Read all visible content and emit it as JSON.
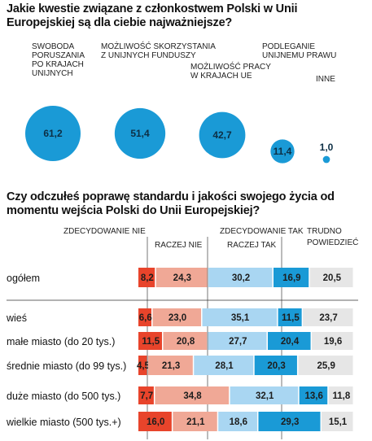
{
  "colors": {
    "bubble": "#1a9ad6",
    "zdecydowanie_nie": "#e8442b",
    "raczej_nie": "#f0a896",
    "raczej_tak": "#a9d6f2",
    "zdecydowanie_tak": "#1a9ad6",
    "trudno_powiedziec": "#e6e6e6",
    "divider": "#333333"
  },
  "chart_data": [
    {
      "type": "scatter",
      "title": "Jakie kwestie związane z członkostwem Polski w Unii Europejskiej są dla ciebie najważniejsze?",
      "points": [
        {
          "label": [
            "SWOBODA",
            "PORUSZANIA",
            "PO KRAJACH",
            "UNIJNYCH"
          ],
          "value": "61,2"
        },
        {
          "label": [
            "MOŻLIWOŚĆ SKORZYSTANIA",
            "Z UNIJNYCH FUNDUSZY"
          ],
          "value": "51,4"
        },
        {
          "label": [
            "MOŻLIWOŚĆ PRACY",
            "W KRAJACH UE"
          ],
          "value": "42,7"
        },
        {
          "label": [
            "PODLEGANIE",
            "UNIJNEMU PRAWU"
          ],
          "value": "11,4"
        },
        {
          "label": [
            "INNE"
          ],
          "value": "1,0"
        }
      ]
    },
    {
      "type": "bar",
      "stacked": true,
      "orientation": "horizontal",
      "title": "Czy odczułeś poprawę standardu i jakości swojego życia od momentu wejścia Polski do Unii Europejskiej?",
      "series": [
        {
          "name": "ZDECYDOWANIE NIE"
        },
        {
          "name": "RACZEJ NIE"
        },
        {
          "name": "RACZEJ TAK"
        },
        {
          "name": "ZDECYDOWANIE TAK"
        },
        {
          "name": "TRUDNO POWIEDZIEĆ"
        }
      ],
      "rows": [
        {
          "category": "ogółem",
          "values": [
            "8,2",
            "24,3",
            "30,2",
            "16,9",
            "20,5"
          ]
        },
        {
          "category": "wieś",
          "values": [
            "6,6",
            "23,0",
            "35,1",
            "11,5",
            "23,7"
          ]
        },
        {
          "category": "małe miasto (do 20 tys.)",
          "values": [
            "11,5",
            "20,8",
            "27,7",
            "20,4",
            "19,6"
          ]
        },
        {
          "category": "średnie miasto (do 99 tys.)",
          "values": [
            "4,5",
            "21,3",
            "28,1",
            "20,3",
            "25,9"
          ]
        },
        {
          "category": "duże miasto (do 500 tys.)",
          "values": [
            "7,7",
            "34,8",
            "32,1",
            "13,6",
            "11,8"
          ]
        },
        {
          "category": "wielkie miasto (500 tys.+)",
          "values": [
            "16,0",
            "21,1",
            "18,6",
            "29,3",
            "15,1"
          ]
        }
      ]
    }
  ]
}
